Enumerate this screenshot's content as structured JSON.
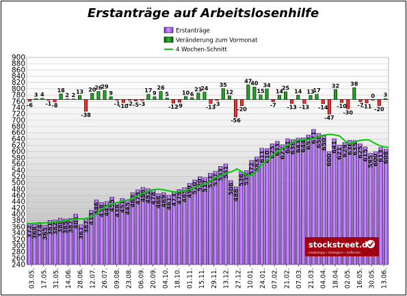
{
  "chart_data": {
    "type": "bar",
    "title": "Erstanträge auf  Arbeitslosenhilfe",
    "ylim": [
      240,
      900
    ],
    "yticks": [
      240,
      260,
      280,
      300,
      320,
      340,
      360,
      380,
      400,
      420,
      440,
      460,
      480,
      500,
      520,
      540,
      560,
      580,
      600,
      620,
      640,
      660,
      680,
      700,
      720,
      740,
      760,
      780,
      800,
      820,
      840,
      860,
      880,
      900
    ],
    "change_baseline": 766,
    "x_tick_labels": [
      "03.05.",
      "17.05.",
      "31.05.",
      "14.06.",
      "28.06.",
      "12.07.",
      "26.07.",
      "09.08.",
      "23.08.",
      "06.09.",
      "20.09.",
      "04.10.",
      "18.10.",
      "01.11.",
      "15.11.",
      "29.11.",
      "13.12.",
      "27.12.",
      "10.01.",
      "24.01.",
      "07.02.",
      "21.02.",
      "07.03.",
      "21.03.",
      "04.04.",
      "18.04.",
      "02.05.",
      "16.05.",
      "30.05.",
      "13.06."
    ],
    "grid": true,
    "legend": {
      "placement": "top-center",
      "entries": [
        "Erstanträge",
        "Veränderung zum Vormonat",
        "4 Wochen-Schnitt"
      ]
    },
    "series": [
      {
        "name": "Erstanträge",
        "values": [
          372,
          368,
          374,
          365,
          381,
          382,
          388,
          385,
          387,
          401,
          367,
          387,
          413,
          446,
          438,
          441,
          455,
          438,
          451,
          445,
          469,
          478,
          486,
          482,
          478,
          466,
          469,
          461,
          473,
          479,
          485,
          499,
          510,
          520,
          517,
          531,
          537,
          553,
          561,
          508,
          488,
          536,
          539,
          572,
          583,
          611,
          610,
          625,
          633,
          622,
          641,
          638,
          643,
          644,
          653,
          671,
          658,
          650,
          600,
          641,
          621,
          629,
          636,
          635,
          625,
          615,
          595,
          600,
          613,
          608
        ]
      },
      {
        "name": "Veränderung zum Vormonat",
        "values": [
          -6,
          3,
          4,
          -1,
          -8,
          18,
          2,
          2,
          13,
          -38,
          20,
          26,
          29,
          9,
          -1,
          -10,
          -2,
          -5,
          -3,
          17,
          9,
          26,
          5,
          -12,
          -9,
          10,
          6,
          21,
          24,
          -13,
          -3,
          35,
          12,
          -56,
          -20,
          47,
          40,
          15,
          34,
          -7,
          14,
          25,
          -13,
          14,
          -13,
          13,
          17,
          -14,
          -47,
          32,
          -10,
          -30,
          38,
          -7,
          -11,
          0,
          -20,
          3
        ]
      },
      {
        "name": "4 Wochen-Schnitt",
        "values": [
          370,
          371,
          372,
          372,
          373,
          374,
          376,
          378,
          380,
          383,
          385,
          386,
          386,
          391,
          399,
          412,
          424,
          430,
          435,
          440,
          444,
          447,
          455,
          462,
          469,
          475,
          479,
          480,
          478,
          475,
          472,
          472,
          474,
          477,
          483,
          490,
          494,
          500,
          512,
          520,
          527,
          533,
          536,
          545,
          536,
          525,
          525,
          538,
          556,
          570,
          585,
          595,
          608,
          617,
          625,
          634,
          637,
          638,
          640,
          643,
          650,
          653,
          655,
          653,
          650,
          635,
          625,
          630,
          635,
          637,
          637,
          628,
          620,
          615,
          613
        ]
      }
    ],
    "colors": {
      "bar_top": "#cc99ff",
      "bar_bottom": "#8a33d6",
      "bar_edge": "#000000",
      "change_bar": "#008000",
      "change_bar_light": "#6fd86f",
      "negative_bar": "#ee0000",
      "negative_bar_light": "#ff8a8a",
      "avg_line": "#00cc00",
      "grid": "#bbbbbb",
      "plot_top": "#ffffff",
      "plot_bottom": "#b8b8b8"
    }
  },
  "watermark": {
    "name": "stockstreet.de",
    "tagline": "unabhängig • strategisch • treffsicher"
  }
}
